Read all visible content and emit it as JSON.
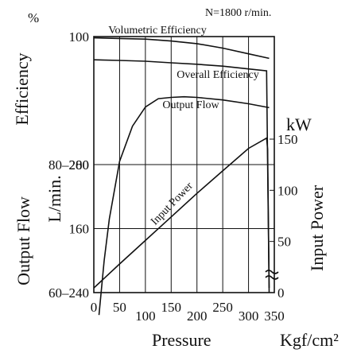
{
  "chart_data": {
    "type": "line",
    "condition": "N=1800 r/min.",
    "x_axis": {
      "label": "Pressure",
      "unit": "Kgf/cm²",
      "range": [
        0,
        350
      ],
      "ticks": [
        {
          "value": 0,
          "label": "0",
          "row": 1
        },
        {
          "value": 50,
          "label": "50",
          "row": 1
        },
        {
          "value": 100,
          "label": "100",
          "row": 2
        },
        {
          "value": 150,
          "label": "150",
          "row": 1
        },
        {
          "value": 200,
          "label": "200",
          "row": 2
        },
        {
          "value": 250,
          "label": "250",
          "row": 1
        },
        {
          "value": 300,
          "label": "300",
          "row": 2
        },
        {
          "value": 350,
          "label": "350",
          "row": 2
        }
      ],
      "gridlines": [
        50,
        100,
        150,
        200,
        250,
        300
      ]
    },
    "left_axis": {
      "efficiency_label": "Efficiency",
      "efficiency_unit": "%",
      "flow_label": "Output Flow",
      "flow_unit": "L/min.",
      "tick_labels": [
        "100",
        "80–280",
        "60–240",
        "200",
        "160"
      ],
      "efficiency_range": [
        60,
        100
      ],
      "flow_range": [
        120,
        280
      ]
    },
    "right_axis": {
      "label": "Input Power",
      "unit": "kW",
      "range": [
        0,
        150
      ],
      "ticks": [
        "150",
        "100",
        "50",
        "0"
      ]
    },
    "series": [
      {
        "name": "Volumetric Efficiency",
        "axis": "efficiency",
        "x": [
          0,
          50,
          100,
          150,
          200,
          250,
          300,
          340
        ],
        "y": [
          99.8,
          99.7,
          99.6,
          99.3,
          98.9,
          98.2,
          97.3,
          96.6
        ]
      },
      {
        "name": "Overall Efficiency",
        "axis": "efficiency",
        "x": [
          10,
          20,
          30,
          50,
          75,
          100,
          125,
          150,
          175,
          200,
          250,
          300,
          340
        ],
        "y": [
          56.5,
          65,
          71.5,
          80.5,
          86,
          89,
          90.3,
          90.5,
          90.6,
          90.5,
          90.1,
          89.5,
          88.9
        ]
      },
      {
        "name": "Output Flow",
        "axis": "flow",
        "x": [
          0,
          50,
          100,
          150,
          200,
          250,
          300,
          335,
          337,
          340
        ],
        "y": [
          265.5,
          265.1,
          264.6,
          263.6,
          262.7,
          261.5,
          259.8,
          258.6,
          200,
          123
        ]
      },
      {
        "name": "Input Power",
        "axis": "power",
        "x": [
          0,
          50,
          100,
          150,
          200,
          250,
          300,
          335,
          337,
          340
        ],
        "y": [
          4.5,
          28,
          51,
          74,
          97,
          119,
          141,
          151,
          140,
          0
        ]
      }
    ]
  }
}
